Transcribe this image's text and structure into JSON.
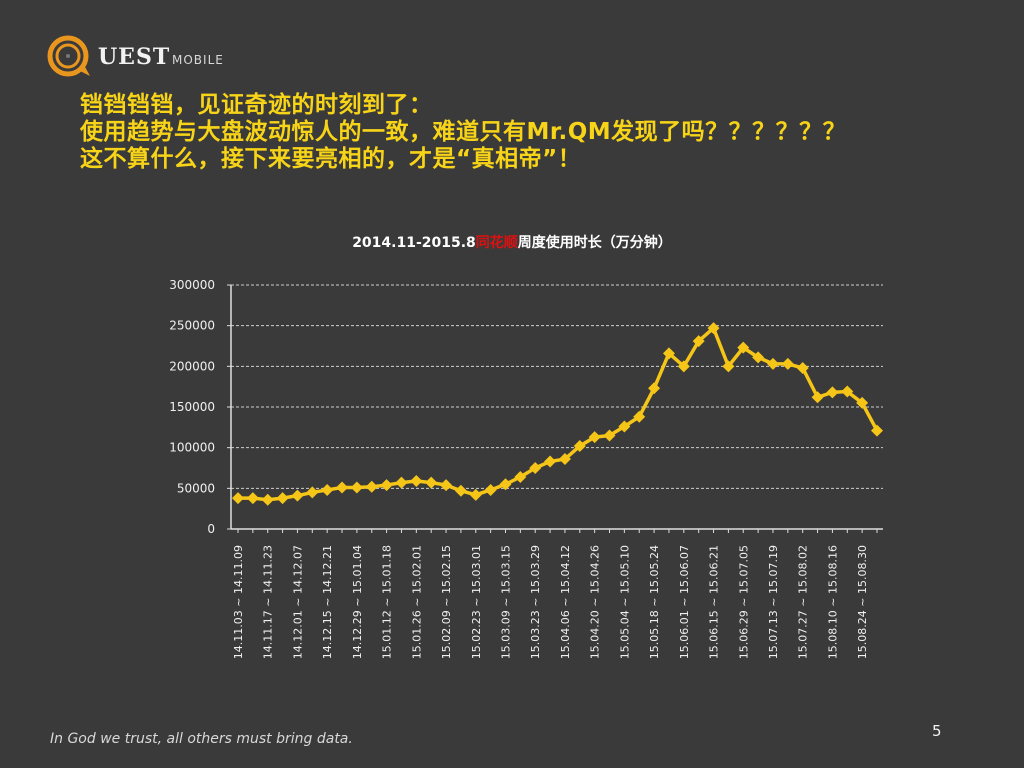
{
  "logo": {
    "brand": "UEST",
    "sub": "MOBILE",
    "accent": "#e8961e"
  },
  "headline": {
    "line1": "铛铛铛铛，见证奇迹的时刻到了：",
    "line2": "使用趋势与大盘波动惊人的一致，难道只有Mr.QM发现了吗？？？？？？",
    "line3": "这不算什么，接下来要亮相的，才是“真相帝”！"
  },
  "chart_data": {
    "type": "line",
    "title_prefix": "2014.11-2015.8",
    "title_highlight": "同花顺",
    "title_suffix": "周度使用时长（万分钟）",
    "x_labels": [
      "14.11.03 ~ 14.11.09",
      "14.11.17 ~ 14.11.23",
      "14.12.01 ~ 14.12.07",
      "14.12.15 ~ 14.12.21",
      "14.12.29 ~ 15.01.04",
      "15.01.12 ~ 15.01.18",
      "15.01.26 ~ 15.02.01",
      "15.02.09 ~ 15.02.15",
      "15.02.23 ~ 15.03.01",
      "15.03.09 ~ 15.03.15",
      "15.03.23 ~ 15.03.29",
      "15.04.06 ~ 15.04.12",
      "15.04.20 ~ 15.04.26",
      "15.05.04 ~ 15.05.10",
      "15.05.18 ~ 15.05.24",
      "15.06.01 ~ 15.06.07",
      "15.06.15 ~ 15.06.21",
      "15.06.29 ~ 15.07.05",
      "15.07.13 ~ 15.07.19",
      "15.07.27 ~ 15.08.02",
      "15.08.10 ~ 15.08.16",
      "15.08.24 ~ 15.08.30"
    ],
    "values": [
      38000,
      38000,
      36000,
      38000,
      41000,
      45000,
      48000,
      51000,
      51000,
      52000,
      54000,
      57000,
      59000,
      57000,
      54000,
      47000,
      42000,
      48000,
      55000,
      64000,
      75000,
      83000,
      86000,
      102000,
      113000,
      115000,
      126000,
      138000,
      173000,
      216000,
      200000,
      231000,
      247000,
      200000,
      223000,
      211000,
      203000,
      203000,
      198000,
      162000,
      168000,
      169000,
      155000,
      121000
    ],
    "ylim": [
      0,
      300000
    ],
    "yticks": [
      "0",
      "50000",
      "100000",
      "150000",
      "200000",
      "250000",
      "300000"
    ],
    "grid": true,
    "line_color": "#f5c518",
    "marker": "diamond"
  },
  "footer": "In God we trust, all others must bring data.",
  "page_number": "5"
}
